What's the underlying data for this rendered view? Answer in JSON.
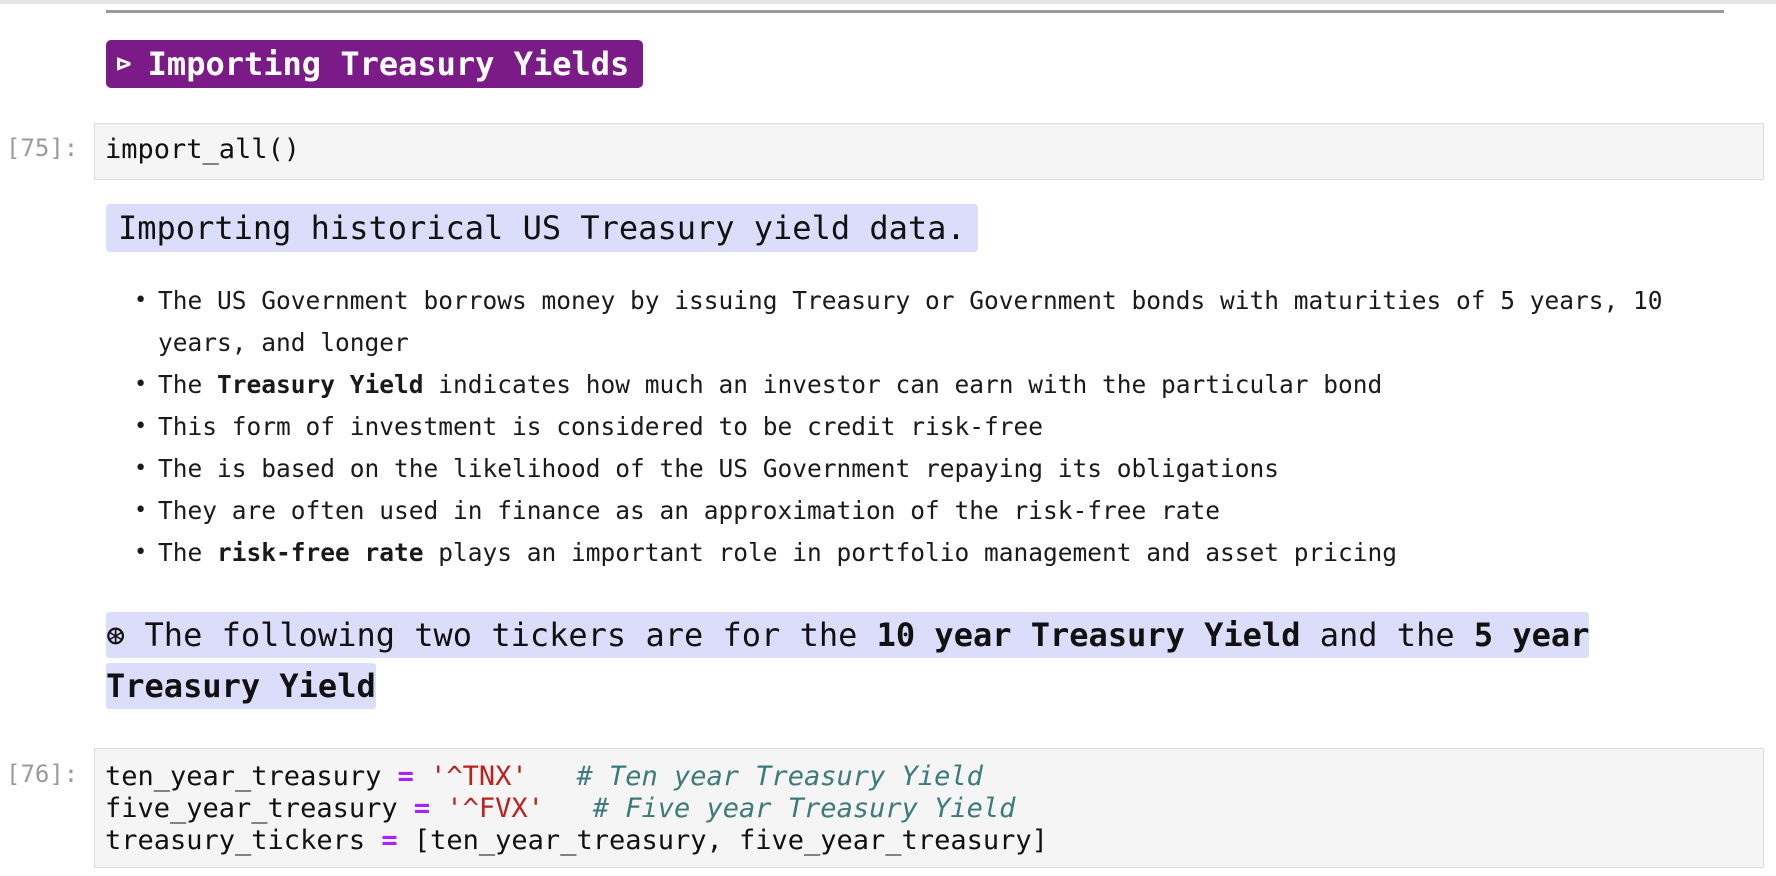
{
  "section": {
    "icon": "⊳",
    "title": "Importing Treasury Yields"
  },
  "cells": [
    {
      "prompt": "[75]:",
      "code": "import_all()"
    },
    {
      "prompt": "[76]:",
      "lines": [
        {
          "var": "ten_year_treasury",
          "op": "=",
          "str": "'^TNX'",
          "gap": "   ",
          "comment": "# Ten year Treasury Yield"
        },
        {
          "var": "five_year_treasury",
          "op": "=",
          "str": "'^FVX'",
          "gap": "   ",
          "comment": "# Five year Treasury Yield"
        },
        {
          "var": "treasury_tickers",
          "op": "=",
          "rest": "[ten_year_treasury, five_year_treasury]"
        }
      ]
    }
  ],
  "markdown": {
    "header": "Importing historical US Treasury yield data.",
    "bullets": [
      {
        "text": "The US Government borrows money by issuing Treasury or Government bonds with maturities of 5 years, 10 years, and longer"
      },
      {
        "pre": "The ",
        "bold": "Treasury Yield",
        "post": " indicates how much an investor can earn with the particular bond"
      },
      {
        "text": "This form of investment is considered to be credit risk-free"
      },
      {
        "text": "The is based on the likelihood of the US Government repaying its obligations"
      },
      {
        "text": "They are often used in finance as an approximation of the risk-free rate"
      },
      {
        "pre": "The ",
        "bold": "risk-free rate",
        "post": " plays an important role in portfolio management and asset pricing"
      }
    ],
    "note": {
      "icon": "⊛",
      "pre": " The following two tickers are for the ",
      "bold1": "10 year Treasury Yield",
      "mid": " and the ",
      "bold2": "5 year Treasury Yield"
    }
  }
}
